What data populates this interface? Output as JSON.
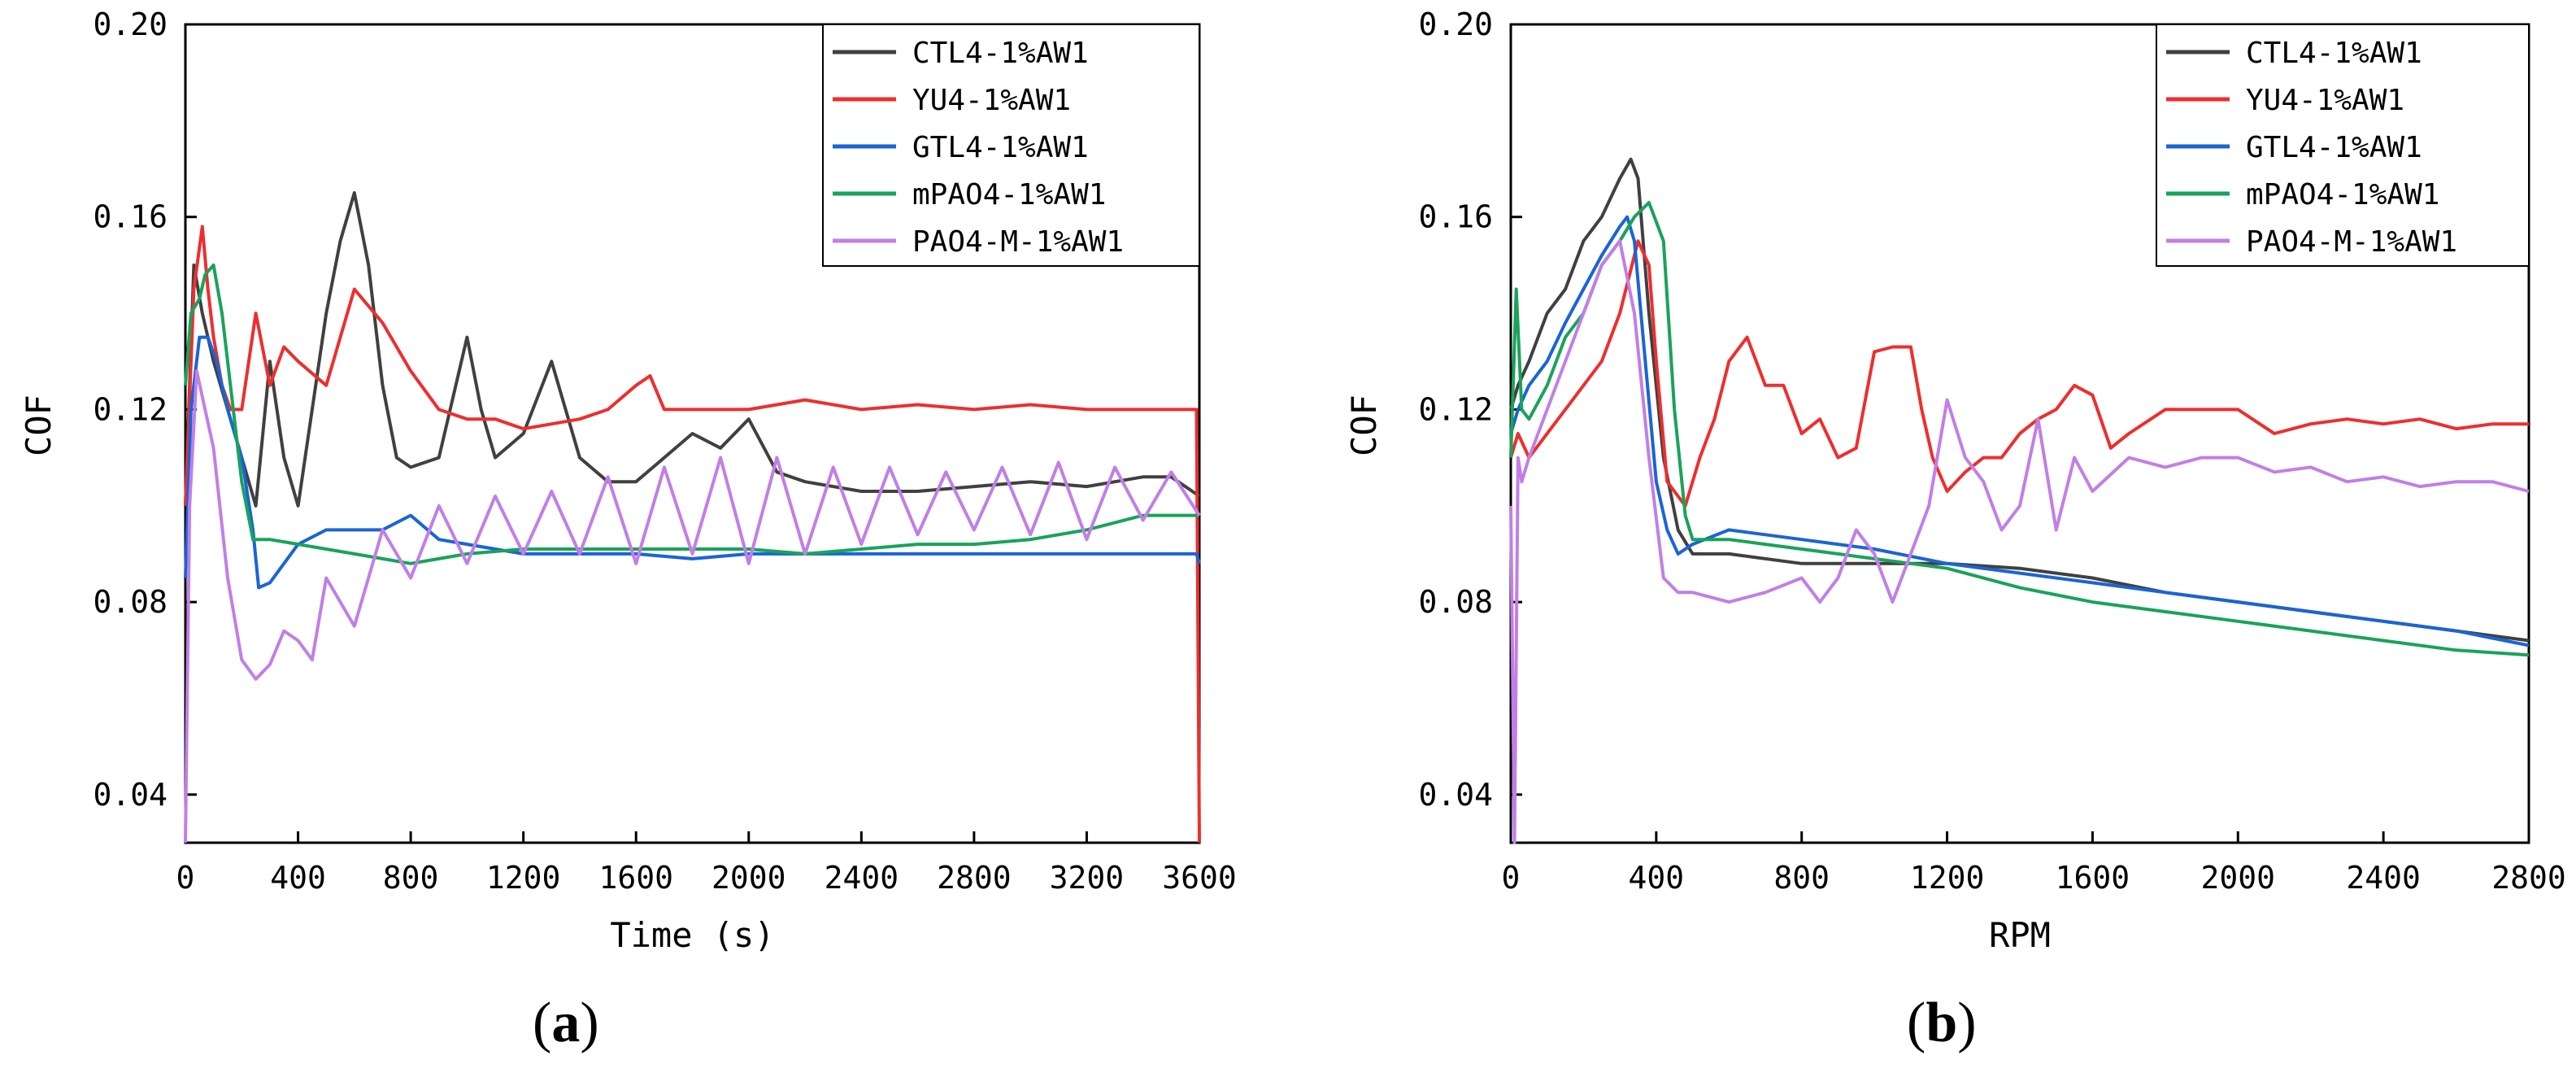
{
  "colors": {
    "CTL4-1%AW1": "#404040",
    "YU4-1%AW1": "#ee2e2e",
    "GTL4-1%AW1": "#1a64d6",
    "mPAO4-1%AW1": "#19a35a",
    "PAO4-M-1%AW1": "#c17fe6"
  },
  "chart_data": [
    {
      "type": "line",
      "panel_label": "a",
      "title": "",
      "xlabel": "Time (s)",
      "ylabel": "COF",
      "xlim": [
        0,
        3600
      ],
      "ylim": [
        0.03,
        0.2
      ],
      "xticks": [
        0,
        400,
        800,
        1200,
        1600,
        2000,
        2400,
        2800,
        3200,
        3600
      ],
      "yticks": [
        0.04,
        0.08,
        0.12,
        0.16,
        0.2
      ],
      "ytick_labels": [
        "0.04",
        "0.08",
        "0.12",
        "0.16",
        "0.20"
      ],
      "legend_position": "top-right",
      "series": [
        {
          "name": "CTL4-1%AW1",
          "x": [
            0,
            30,
            60,
            100,
            150,
            200,
            250,
            300,
            350,
            400,
            450,
            500,
            550,
            600,
            650,
            700,
            750,
            800,
            900,
            1000,
            1050,
            1100,
            1200,
            1300,
            1350,
            1400,
            1500,
            1600,
            1700,
            1800,
            1900,
            2000,
            2100,
            2200,
            2400,
            2600,
            2800,
            3000,
            3200,
            3400,
            3500,
            3600
          ],
          "y": [
            0.1,
            0.15,
            0.14,
            0.13,
            0.12,
            0.11,
            0.1,
            0.13,
            0.11,
            0.1,
            0.12,
            0.14,
            0.155,
            0.165,
            0.15,
            0.125,
            0.11,
            0.108,
            0.11,
            0.135,
            0.12,
            0.11,
            0.115,
            0.13,
            0.12,
            0.11,
            0.105,
            0.105,
            0.11,
            0.115,
            0.112,
            0.118,
            0.107,
            0.105,
            0.103,
            0.103,
            0.104,
            0.105,
            0.104,
            0.106,
            0.106,
            0.102
          ]
        },
        {
          "name": "YU4-1%AW1",
          "x": [
            0,
            30,
            60,
            80,
            100,
            130,
            160,
            200,
            250,
            300,
            350,
            400,
            500,
            600,
            700,
            800,
            900,
            1000,
            1100,
            1200,
            1300,
            1400,
            1500,
            1600,
            1650,
            1700,
            1800,
            2000,
            2200,
            2400,
            2600,
            2800,
            3000,
            3200,
            3400,
            3590,
            3600
          ],
          "y": [
            0.1,
            0.145,
            0.158,
            0.145,
            0.135,
            0.125,
            0.12,
            0.12,
            0.14,
            0.125,
            0.133,
            0.13,
            0.125,
            0.145,
            0.138,
            0.128,
            0.12,
            0.118,
            0.118,
            0.116,
            0.117,
            0.118,
            0.12,
            0.125,
            0.127,
            0.12,
            0.12,
            0.12,
            0.122,
            0.12,
            0.121,
            0.12,
            0.121,
            0.12,
            0.12,
            0.12,
            0.03
          ]
        },
        {
          "name": "GTL4-1%AW1",
          "x": [
            0,
            20,
            50,
            80,
            110,
            150,
            200,
            240,
            260,
            300,
            400,
            500,
            600,
            700,
            800,
            900,
            1000,
            1200,
            1400,
            1600,
            1800,
            2000,
            2200,
            2400,
            2800,
            3200,
            3500,
            3590,
            3600
          ],
          "y": [
            0.085,
            0.12,
            0.135,
            0.135,
            0.13,
            0.12,
            0.11,
            0.095,
            0.083,
            0.084,
            0.092,
            0.095,
            0.095,
            0.095,
            0.098,
            0.093,
            0.092,
            0.09,
            0.09,
            0.09,
            0.089,
            0.09,
            0.09,
            0.09,
            0.09,
            0.09,
            0.09,
            0.09,
            0.088
          ]
        },
        {
          "name": "mPAO4-1%AW1",
          "x": [
            0,
            20,
            50,
            70,
            100,
            130,
            160,
            200,
            240,
            300,
            400,
            500,
            600,
            700,
            800,
            1000,
            1200,
            1400,
            1600,
            1800,
            2000,
            2200,
            2400,
            2600,
            2800,
            3000,
            3200,
            3400,
            3600
          ],
          "y": [
            0.125,
            0.14,
            0.143,
            0.148,
            0.15,
            0.14,
            0.125,
            0.105,
            0.093,
            0.093,
            0.092,
            0.091,
            0.09,
            0.089,
            0.088,
            0.09,
            0.091,
            0.091,
            0.091,
            0.091,
            0.091,
            0.09,
            0.091,
            0.092,
            0.092,
            0.093,
            0.095,
            0.098,
            0.098
          ]
        },
        {
          "name": "PAO4-M-1%AW1",
          "x": [
            0,
            15,
            40,
            70,
            100,
            150,
            200,
            250,
            300,
            350,
            400,
            450,
            500,
            600,
            700,
            800,
            900,
            1000,
            1100,
            1200,
            1300,
            1400,
            1500,
            1600,
            1700,
            1800,
            1900,
            2000,
            2100,
            2200,
            2300,
            2400,
            2500,
            2600,
            2700,
            2800,
            2900,
            3000,
            3100,
            3200,
            3300,
            3400,
            3500,
            3600
          ],
          "y": [
            0.03,
            0.1,
            0.128,
            0.12,
            0.112,
            0.085,
            0.068,
            0.064,
            0.067,
            0.074,
            0.072,
            0.068,
            0.085,
            0.075,
            0.095,
            0.085,
            0.1,
            0.088,
            0.102,
            0.09,
            0.103,
            0.09,
            0.106,
            0.088,
            0.108,
            0.09,
            0.11,
            0.088,
            0.11,
            0.09,
            0.108,
            0.092,
            0.108,
            0.094,
            0.107,
            0.095,
            0.108,
            0.094,
            0.109,
            0.093,
            0.108,
            0.097,
            0.107,
            0.098
          ]
        }
      ]
    },
    {
      "type": "line",
      "panel_label": "b",
      "title": "",
      "xlabel": "RPM",
      "ylabel": "COF",
      "xlim": [
        0,
        2800
      ],
      "ylim": [
        0.03,
        0.2
      ],
      "xticks": [
        0,
        400,
        800,
        1200,
        1600,
        2000,
        2400,
        2800
      ],
      "yticks": [
        0.04,
        0.08,
        0.12,
        0.16,
        0.2
      ],
      "ytick_labels": [
        "0.04",
        "0.08",
        "0.12",
        "0.16",
        "0.20"
      ],
      "legend_position": "top-right",
      "series": [
        {
          "name": "CTL4-1%AW1",
          "x": [
            0,
            20,
            50,
            100,
            150,
            200,
            250,
            300,
            330,
            350,
            380,
            420,
            460,
            500,
            600,
            800,
            1000,
            1200,
            1400,
            1600,
            1800,
            2000,
            2200,
            2400,
            2600,
            2800
          ],
          "y": [
            0.12,
            0.125,
            0.13,
            0.14,
            0.145,
            0.155,
            0.16,
            0.168,
            0.172,
            0.168,
            0.14,
            0.11,
            0.095,
            0.09,
            0.09,
            0.088,
            0.088,
            0.088,
            0.087,
            0.085,
            0.082,
            0.08,
            0.078,
            0.076,
            0.074,
            0.072
          ]
        },
        {
          "name": "YU4-1%AW1",
          "x": [
            0,
            20,
            50,
            100,
            150,
            200,
            250,
            300,
            350,
            380,
            400,
            430,
            480,
            520,
            560,
            600,
            650,
            700,
            750,
            800,
            850,
            900,
            950,
            1000,
            1050,
            1100,
            1130,
            1160,
            1200,
            1250,
            1300,
            1350,
            1400,
            1450,
            1500,
            1550,
            1600,
            1650,
            1700,
            1800,
            1900,
            2000,
            2100,
            2200,
            2300,
            2400,
            2500,
            2600,
            2700,
            2800
          ],
          "y": [
            0.11,
            0.115,
            0.11,
            0.115,
            0.12,
            0.125,
            0.13,
            0.14,
            0.155,
            0.15,
            0.13,
            0.105,
            0.1,
            0.11,
            0.118,
            0.13,
            0.135,
            0.125,
            0.125,
            0.115,
            0.118,
            0.11,
            0.112,
            0.132,
            0.133,
            0.133,
            0.12,
            0.11,
            0.103,
            0.107,
            0.11,
            0.11,
            0.115,
            0.118,
            0.12,
            0.125,
            0.123,
            0.112,
            0.115,
            0.12,
            0.12,
            0.12,
            0.115,
            0.117,
            0.118,
            0.117,
            0.118,
            0.116,
            0.117,
            0.117
          ]
        },
        {
          "name": "GTL4-1%AW1",
          "x": [
            0,
            20,
            50,
            100,
            150,
            200,
            250,
            300,
            320,
            340,
            370,
            400,
            430,
            460,
            500,
            600,
            700,
            800,
            900,
            1000,
            1200,
            1400,
            1600,
            1800,
            2000,
            2200,
            2400,
            2600,
            2800
          ],
          "y": [
            0.115,
            0.12,
            0.125,
            0.13,
            0.138,
            0.145,
            0.152,
            0.158,
            0.16,
            0.155,
            0.13,
            0.105,
            0.095,
            0.09,
            0.092,
            0.095,
            0.094,
            0.093,
            0.092,
            0.091,
            0.088,
            0.086,
            0.084,
            0.082,
            0.08,
            0.078,
            0.076,
            0.074,
            0.071
          ]
        },
        {
          "name": "mPAO4-1%AW1",
          "x": [
            0,
            15,
            30,
            50,
            100,
            150,
            200,
            250,
            300,
            340,
            380,
            420,
            450,
            480,
            500,
            600,
            700,
            800,
            900,
            1000,
            1200,
            1400,
            1600,
            1800,
            2000,
            2200,
            2400,
            2600,
            2800
          ],
          "y": [
            0.11,
            0.145,
            0.12,
            0.118,
            0.125,
            0.135,
            0.14,
            0.15,
            0.155,
            0.16,
            0.163,
            0.155,
            0.12,
            0.098,
            0.093,
            0.093,
            0.092,
            0.091,
            0.09,
            0.089,
            0.087,
            0.083,
            0.08,
            0.078,
            0.076,
            0.074,
            0.072,
            0.07,
            0.069
          ]
        },
        {
          "name": "PAO4-M-1%AW1",
          "x": [
            0,
            10,
            20,
            30,
            50,
            100,
            150,
            200,
            250,
            300,
            340,
            380,
            420,
            460,
            500,
            600,
            700,
            800,
            850,
            900,
            950,
            1000,
            1050,
            1100,
            1150,
            1200,
            1250,
            1300,
            1350,
            1400,
            1450,
            1500,
            1550,
            1600,
            1700,
            1800,
            1900,
            2000,
            2100,
            2200,
            2300,
            2400,
            2500,
            2600,
            2700,
            2800
          ],
          "y": [
            0.1,
            0.03,
            0.11,
            0.105,
            0.11,
            0.12,
            0.13,
            0.14,
            0.15,
            0.155,
            0.14,
            0.11,
            0.085,
            0.082,
            0.082,
            0.08,
            0.082,
            0.085,
            0.08,
            0.085,
            0.095,
            0.09,
            0.08,
            0.09,
            0.1,
            0.122,
            0.11,
            0.105,
            0.095,
            0.1,
            0.118,
            0.095,
            0.11,
            0.103,
            0.11,
            0.108,
            0.11,
            0.11,
            0.107,
            0.108,
            0.105,
            0.106,
            0.104,
            0.105,
            0.105,
            0.103
          ]
        }
      ]
    }
  ]
}
